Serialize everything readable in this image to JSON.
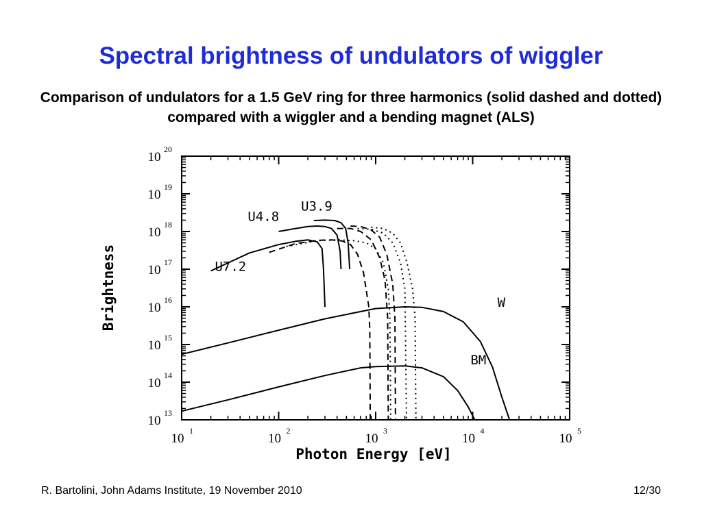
{
  "title": "Spectral brightness of undulators of wiggler",
  "subtitle": "Comparison of undulators for a 1.5 GeV ring for three harmonics (solid dashed and dotted) compared with a wiggler and a bending magnet (ALS)",
  "footer": {
    "author": "R. Bartolini, John Adams Institute, 19 November 2010",
    "page": "12/30"
  },
  "chart_data": {
    "type": "line",
    "xlabel": "Photon Energy [eV]",
    "ylabel": "Brightness",
    "xscale": "log",
    "yscale": "log",
    "xlim": [
      10,
      100000
    ],
    "ylim": [
      10000000000000.0,
      1e+20
    ],
    "x_ticks": [
      {
        "value": 10,
        "base": "10",
        "exp": "1"
      },
      {
        "value": 100,
        "base": "10",
        "exp": "2"
      },
      {
        "value": 1000,
        "base": "10",
        "exp": "3"
      },
      {
        "value": 10000,
        "base": "10",
        "exp": "4"
      },
      {
        "value": 100000,
        "base": "10",
        "exp": "5"
      }
    ],
    "y_ticks": [
      {
        "value": 10000000000000.0,
        "base": "10",
        "exp": "13"
      },
      {
        "value": 100000000000000.0,
        "base": "10",
        "exp": "14"
      },
      {
        "value": 1000000000000000.0,
        "base": "10",
        "exp": "15"
      },
      {
        "value": 1e+16,
        "base": "10",
        "exp": "16"
      },
      {
        "value": 1e+17,
        "base": "10",
        "exp": "17"
      },
      {
        "value": 1e+18,
        "base": "10",
        "exp": "18"
      },
      {
        "value": 1e+19,
        "base": "10",
        "exp": "19"
      },
      {
        "value": 1e+20,
        "base": "10",
        "exp": "20"
      }
    ],
    "grid": false,
    "color": "#000000",
    "series": [
      {
        "name": "U7.2",
        "style": "solid",
        "points": [
          [
            20,
            9e+16
          ],
          [
            50,
            2.7e+17
          ],
          [
            100,
            4.5e+17
          ],
          [
            150,
            5.5e+17
          ],
          [
            200,
            6e+17
          ],
          [
            250,
            5.3e+17
          ],
          [
            280,
            3.5e+17
          ],
          [
            290,
            1e+17
          ],
          [
            300,
            1e+16
          ]
        ]
      },
      {
        "name": "",
        "style": "dashed",
        "series_of": "U7.2",
        "points": [
          [
            80,
            2.8e+17
          ],
          [
            150,
            4.8e+17
          ],
          [
            250,
            5.8e+17
          ],
          [
            350,
            6e+17
          ],
          [
            450,
            5.6e+17
          ],
          [
            550,
            4.5e+17
          ],
          [
            650,
            2.5e+17
          ],
          [
            750,
            8e+16
          ],
          [
            850,
            1e+16
          ],
          [
            870,
            2500000000000000.0
          ],
          [
            880,
            10000000000000.0
          ]
        ]
      },
      {
        "name": "",
        "style": "dotted",
        "series_of": "U7.2",
        "points": [
          [
            120,
            4e+17
          ],
          [
            250,
            5.7e+17
          ],
          [
            400,
            6e+17
          ],
          [
            600,
            5.7e+17
          ],
          [
            800,
            5e+17
          ],
          [
            1000,
            3.5e+17
          ],
          [
            1200,
            1.5e+17
          ],
          [
            1350,
            3e+16
          ],
          [
            1400,
            5000000000000000.0
          ],
          [
            1430,
            10000000000000.0
          ]
        ]
      },
      {
        "name": "U4.8",
        "style": "solid",
        "points": [
          [
            100,
            1e+18
          ],
          [
            150,
            1.2e+18
          ],
          [
            200,
            1.35e+18
          ],
          [
            250,
            1.4e+18
          ],
          [
            300,
            1.35e+18
          ],
          [
            350,
            1.2e+18
          ],
          [
            400,
            8e+17
          ],
          [
            430,
            3e+17
          ],
          [
            440,
            1e+17
          ]
        ]
      },
      {
        "name": "",
        "style": "dashed",
        "series_of": "U4.8",
        "points": [
          [
            400,
            1.2e+18
          ],
          [
            550,
            1.2e+18
          ],
          [
            700,
            1e+18
          ],
          [
            900,
            6e+17
          ],
          [
            1100,
            2e+17
          ],
          [
            1250,
            5e+16
          ],
          [
            1330,
            5000000000000000.0
          ],
          [
            1350,
            10000000000000.0
          ]
        ]
      },
      {
        "name": "",
        "style": "dotted",
        "series_of": "U4.8",
        "points": [
          [
            650,
            1.2e+18
          ],
          [
            900,
            1.15e+18
          ],
          [
            1200,
            9e+17
          ],
          [
            1500,
            5e+17
          ],
          [
            1800,
            1.5e+17
          ],
          [
            2000,
            3e+16
          ],
          [
            2080,
            10000000000000.0
          ]
        ]
      },
      {
        "name": "U3.9",
        "style": "solid",
        "points": [
          [
            230,
            1.95e+18
          ],
          [
            300,
            2e+18
          ],
          [
            380,
            1.95e+18
          ],
          [
            440,
            1.7e+18
          ],
          [
            490,
            1.2e+18
          ],
          [
            520,
            5e+17
          ],
          [
            540,
            1e+17
          ]
        ]
      },
      {
        "name": "",
        "style": "dashed",
        "series_of": "U3.9",
        "points": [
          [
            550,
            1.4e+18
          ],
          [
            700,
            1.35e+18
          ],
          [
            900,
            1.1e+18
          ],
          [
            1100,
            7e+17
          ],
          [
            1300,
            2.5e+17
          ],
          [
            1500,
            4e+16
          ],
          [
            1580,
            5000000000000000.0
          ],
          [
            1600,
            10000000000000.0
          ]
        ]
      },
      {
        "name": "",
        "style": "dotted",
        "series_of": "U3.9",
        "points": [
          [
            900,
            1.3e+18
          ],
          [
            1200,
            1.2e+18
          ],
          [
            1500,
            9e+17
          ],
          [
            1800,
            5e+17
          ],
          [
            2100,
            1.5e+17
          ],
          [
            2400,
            3e+16
          ],
          [
            2550,
            5000000000000000.0
          ],
          [
            2600,
            10000000000000.0
          ]
        ]
      },
      {
        "name": "W",
        "style": "solid",
        "points": [
          [
            10,
            550000000000000.0
          ],
          [
            30,
            1100000000000000.0
          ],
          [
            100,
            2400000000000000.0
          ],
          [
            300,
            4800000000000000.0
          ],
          [
            700,
            7500000000000000.0
          ],
          [
            1000,
            9000000000000000.0
          ],
          [
            2000,
            1e+16
          ],
          [
            3000,
            9700000000000000.0
          ],
          [
            5000,
            7500000000000000.0
          ],
          [
            8000,
            4000000000000000.0
          ],
          [
            12000,
            1200000000000000.0
          ],
          [
            16000,
            250000000000000.0
          ],
          [
            20000,
            40000000000000.0
          ],
          [
            24000,
            10000000000000.0
          ]
        ]
      },
      {
        "name": "BM",
        "style": "solid",
        "points": [
          [
            10,
            17000000000000.0
          ],
          [
            30,
            34000000000000.0
          ],
          [
            100,
            75000000000000.0
          ],
          [
            300,
            150000000000000.0
          ],
          [
            700,
            240000000000000.0
          ],
          [
            1000,
            260000000000000.0
          ],
          [
            2000,
            270000000000000.0
          ],
          [
            3000,
            240000000000000.0
          ],
          [
            5000,
            140000000000000.0
          ],
          [
            7000,
            60000000000000.0
          ],
          [
            9000,
            22000000000000.0
          ],
          [
            10500,
            10000000000000.0
          ]
        ]
      }
    ],
    "curve_labels": [
      {
        "text": "U7.2",
        "x": 22,
        "y": 9e+16
      },
      {
        "text": "U4.8",
        "x": 48,
        "y": 1.9e+18
      },
      {
        "text": "U3.9",
        "x": 170,
        "y": 3.6e+18
      },
      {
        "text": "W",
        "x": 18000,
        "y": 1e+16
      },
      {
        "text": "BM",
        "x": 9500,
        "y": 300000000000000.0
      }
    ]
  }
}
